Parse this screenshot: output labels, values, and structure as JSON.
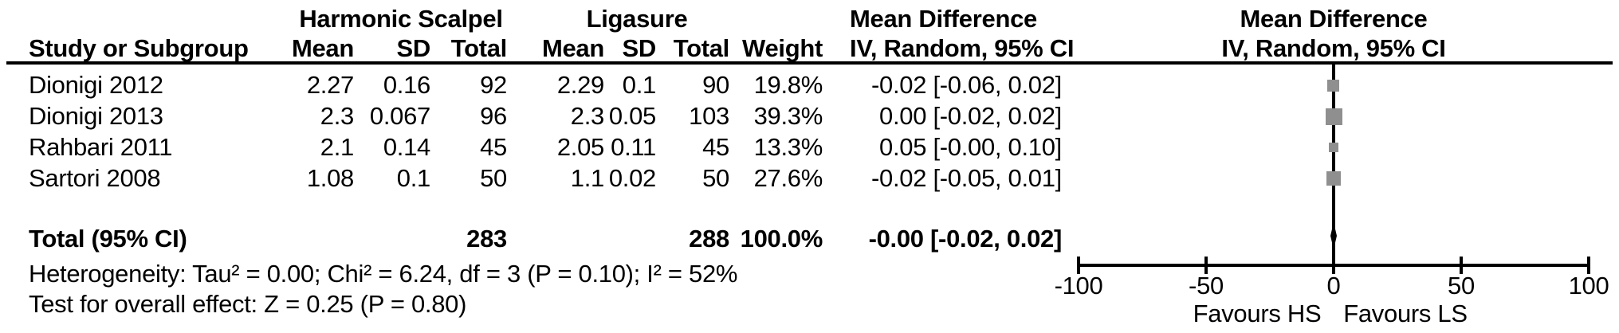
{
  "header": {
    "group1": "Harmonic Scalpel",
    "group2": "Ligasure",
    "md_title": "Mean Difference",
    "md_sub": "IV, Random, 95% CI",
    "plot_title": "Mean Difference",
    "plot_sub": "IV, Random, 95% CI",
    "study_col": "Study or Subgroup",
    "mean_col": "Mean",
    "sd_col": "SD",
    "total_col": "Total",
    "weight_col": "Weight"
  },
  "footer": {
    "heterogeneity": "Heterogeneity: Tau² = 0.00; Chi² = 6.24, df = 3 (P = 0.10); I² = 52%",
    "overall_effect": "Test for overall effect: Z = 0.25 (P = 0.80)"
  },
  "colors": {
    "marker": "#8f8f8f",
    "diamond": "#000000",
    "line": "#000000",
    "text": "#000000",
    "background": "#ffffff"
  },
  "chart_data": {
    "type": "forest",
    "effect_measure": "Mean Difference, IV, Random, 95% CI",
    "studies": [
      {
        "name": "Dionigi 2012",
        "hs_mean": "2.27",
        "hs_sd": "0.16",
        "hs_total": "92",
        "ls_mean": "2.29",
        "ls_sd": "0.1",
        "ls_total": "90",
        "weight": "19.8%",
        "weight_pct": 19.8,
        "ci_text": "-0.02 [-0.06, 0.02]",
        "md": -0.02,
        "ci_low": -0.06,
        "ci_high": 0.02
      },
      {
        "name": "Dionigi 2013",
        "hs_mean": "2.3",
        "hs_sd": "0.067",
        "hs_total": "96",
        "ls_mean": "2.3",
        "ls_sd": "0.05",
        "ls_total": "103",
        "weight": "39.3%",
        "weight_pct": 39.3,
        "ci_text": "0.00 [-0.02, 0.02]",
        "md": 0.0,
        "ci_low": -0.02,
        "ci_high": 0.02
      },
      {
        "name": "Rahbari 2011",
        "hs_mean": "2.1",
        "hs_sd": "0.14",
        "hs_total": "45",
        "ls_mean": "2.05",
        "ls_sd": "0.11",
        "ls_total": "45",
        "weight": "13.3%",
        "weight_pct": 13.3,
        "ci_text": "0.05 [-0.00, 0.10]",
        "md": 0.05,
        "ci_low": 0.0,
        "ci_high": 0.1
      },
      {
        "name": "Sartori 2008",
        "hs_mean": "1.08",
        "hs_sd": "0.1",
        "hs_total": "50",
        "ls_mean": "1.1",
        "ls_sd": "0.02",
        "ls_total": "50",
        "weight": "27.6%",
        "weight_pct": 27.6,
        "ci_text": "-0.02 [-0.05, 0.01]",
        "md": -0.02,
        "ci_low": -0.05,
        "ci_high": 0.01
      }
    ],
    "total": {
      "label": "Total (95% CI)",
      "hs_total": "283",
      "ls_total": "288",
      "weight": "100.0%",
      "ci_text": "-0.00 [-0.02, 0.02]",
      "md": 0.0,
      "ci_low": -0.02,
      "ci_high": 0.02
    },
    "axis": {
      "xlim": [
        -100,
        100
      ],
      "ticks": [
        -100,
        -50,
        0,
        50,
        100
      ],
      "tick_labels": [
        "-100",
        "-50",
        "0",
        "50",
        "100"
      ],
      "favours_left": "Favours HS",
      "favours_right": "Favours LS"
    }
  }
}
